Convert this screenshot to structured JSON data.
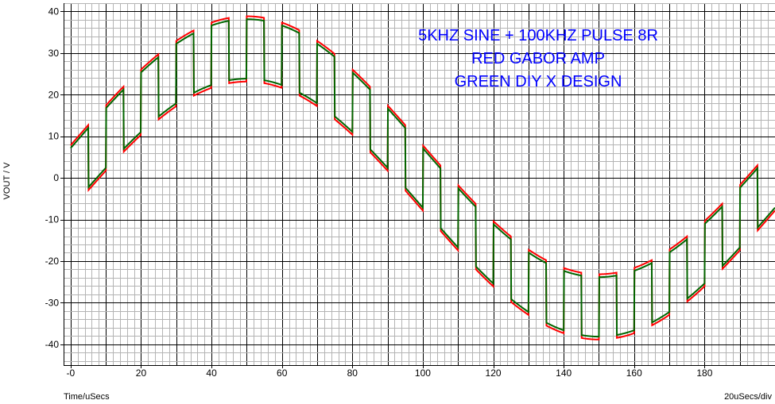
{
  "chart_data": {
    "type": "line",
    "annotations": [
      "5KHZ SINE + 100KHZ PULSE 8R",
      "RED GABOR AMP",
      "GREEN DIY X DESIGN"
    ],
    "xlabel": "Time/uSecs",
    "x_scale_label": "20uSecs/div",
    "ylabel": "VOUT / V",
    "xlim": [
      -2,
      200
    ],
    "ylim": [
      -45,
      42
    ],
    "x_ticks": [
      0,
      20,
      40,
      60,
      80,
      100,
      120,
      140,
      160,
      180
    ],
    "x_tick_labels": [
      "-0",
      "20",
      "40",
      "60",
      "80",
      "100",
      "120",
      "140",
      "160",
      "180"
    ],
    "y_ticks": [
      40,
      30,
      20,
      10,
      0,
      -10,
      -20,
      -30,
      -40
    ],
    "y_tick_labels": [
      "40",
      "30",
      "20",
      "10",
      "0",
      "-10",
      "-20",
      "-30",
      "-40"
    ],
    "grid": true,
    "signal": {
      "sine_frequency_khz": 5,
      "sine_amplitude_v": 31,
      "pulse_frequency_khz": 100,
      "pulse_amplitude_v": 7.5,
      "load": "8R"
    },
    "series": [
      {
        "name": "RED GABOR AMP",
        "color": "#ff0000",
        "droop_v": 0.35
      },
      {
        "name": "GREEN DIY X DESIGN",
        "color": "#006600",
        "droop_v": -0.35
      }
    ]
  }
}
